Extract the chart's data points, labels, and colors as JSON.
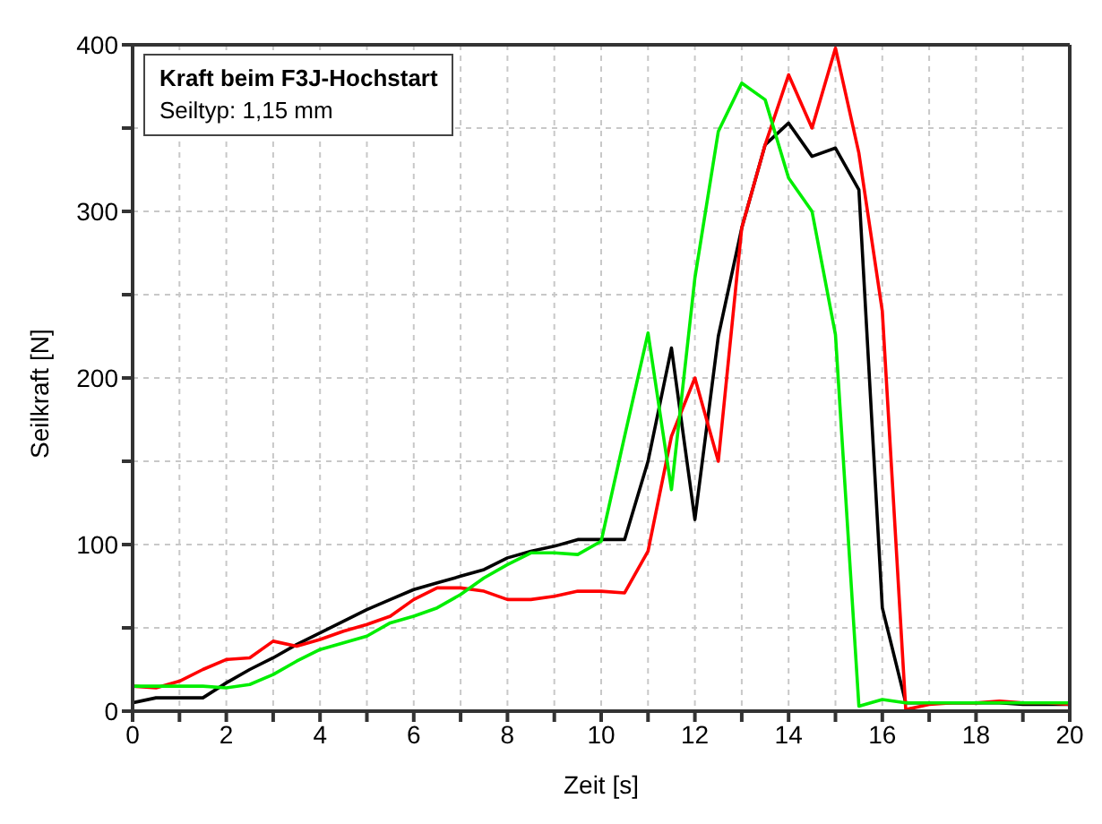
{
  "chart_data": {
    "type": "line",
    "title": "Kraft beim F3J-Hochstart",
    "annotations": [
      "Seiltyp: 1,15 mm"
    ],
    "xlabel": "Zeit [s]",
    "ylabel": "Seilkraft [N]",
    "x": [
      0,
      0.5,
      1,
      1.5,
      2,
      2.5,
      3,
      3.5,
      4,
      4.5,
      5,
      5.5,
      6,
      6.5,
      7,
      7.5,
      8,
      8.5,
      9,
      9.5,
      10,
      10.5,
      11,
      11.5,
      12,
      12.5,
      13,
      13.5,
      14,
      14.5,
      15,
      15.5,
      16,
      16.5,
      17,
      17.5,
      18,
      18.5,
      19,
      19.5,
      20
    ],
    "series": [
      {
        "color": "#000000",
        "values": [
          5,
          8,
          8,
          8,
          17,
          25,
          32,
          40,
          47,
          54,
          61,
          67,
          73,
          77,
          81,
          85,
          92,
          96,
          99,
          103,
          103,
          103,
          150,
          218,
          115,
          225,
          290,
          340,
          353,
          333,
          338,
          313,
          62,
          5,
          5,
          5,
          5,
          5,
          4,
          4,
          4
        ]
      },
      {
        "color": "#ff0000",
        "values": [
          15,
          14,
          18,
          25,
          31,
          32,
          42,
          39,
          43,
          48,
          52,
          57,
          67,
          74,
          74,
          72,
          67,
          67,
          69,
          72,
          72,
          71,
          96,
          165,
          200,
          150,
          290,
          340,
          382,
          350,
          398,
          335,
          240,
          1,
          4,
          5,
          5,
          6,
          5,
          5,
          4
        ]
      },
      {
        "color": "#00ee00",
        "values": [
          15,
          15,
          15,
          15,
          14,
          16,
          22,
          30,
          37,
          41,
          45,
          53,
          57,
          62,
          70,
          80,
          88,
          95,
          95,
          94,
          102,
          165,
          227,
          133,
          260,
          348,
          377,
          367,
          320,
          300,
          226,
          3,
          7,
          5,
          5,
          5,
          5,
          5,
          5,
          5,
          5
        ]
      }
    ],
    "xlim": [
      0,
      20
    ],
    "ylim": [
      0,
      400
    ],
    "xticks": [
      0,
      {
        "value": 1,
        "label": null
      },
      2,
      {
        "value": 3,
        "label": null
      },
      4,
      {
        "value": 5,
        "label": null
      },
      6,
      {
        "value": 7,
        "label": null
      },
      8,
      {
        "value": 9,
        "label": null
      },
      10,
      {
        "value": 11,
        "label": null
      },
      12,
      {
        "value": 13,
        "label": null
      },
      14,
      {
        "value": 15,
        "label": null
      },
      16,
      {
        "value": 17,
        "label": null
      },
      18,
      {
        "value": 19,
        "label": null
      },
      20
    ],
    "yticks": [
      0,
      {
        "value": 50,
        "label": null
      },
      100,
      {
        "value": 150,
        "label": null
      },
      200,
      {
        "value": 250,
        "label": null
      },
      300,
      {
        "value": 350,
        "label": null
      },
      400
    ],
    "grid": true,
    "marker": "none",
    "line_style": "solid"
  }
}
